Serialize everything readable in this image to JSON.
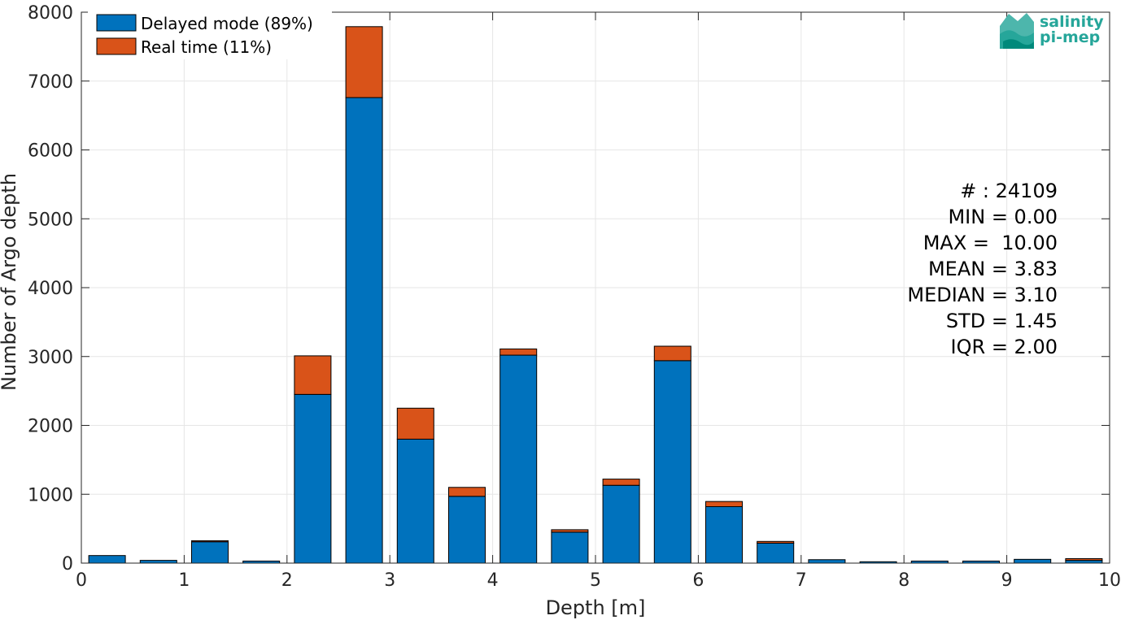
{
  "chart_data": {
    "type": "bar",
    "stacked": true,
    "xlabel": "Depth [m]",
    "ylabel": "Number of Argo depth",
    "xlim": [
      0,
      10
    ],
    "ylim": [
      0,
      8000
    ],
    "xticks": [
      "0",
      "1",
      "2",
      "3",
      "4",
      "5",
      "6",
      "7",
      "8",
      "9",
      "10"
    ],
    "yticks": [
      "0",
      "1000",
      "2000",
      "3000",
      "4000",
      "5000",
      "6000",
      "7000",
      "8000"
    ],
    "grid": true,
    "legend_position": "top-left",
    "bin_centers": [
      0.25,
      0.75,
      1.25,
      1.75,
      2.25,
      2.75,
      3.25,
      3.75,
      4.25,
      4.75,
      5.25,
      5.75,
      6.25,
      6.75,
      7.25,
      7.75,
      8.25,
      8.75,
      9.25,
      9.75
    ],
    "series": [
      {
        "name": "Delayed mode (89%)",
        "color": "#0072BD",
        "values": [
          110,
          40,
          310,
          30,
          2450,
          6760,
          1800,
          970,
          3020,
          450,
          1130,
          2940,
          820,
          290,
          50,
          20,
          30,
          30,
          55,
          40
        ]
      },
      {
        "name": "Real time (11%)",
        "color": "#D95319",
        "values": [
          0,
          0,
          15,
          0,
          560,
          1030,
          450,
          130,
          90,
          35,
          90,
          210,
          75,
          25,
          0,
          0,
          0,
          0,
          0,
          25
        ]
      }
    ]
  },
  "stats": {
    "count": "# : 24109",
    "min": "MIN = 0.00",
    "max": "MAX =  10.00",
    "mean": "MEAN = 3.83",
    "median": "MEDIAN = 3.10",
    "std": "STD = 1.45",
    "iqr": "IQR = 2.00"
  },
  "logo": {
    "line1": "salinity",
    "line2": "pi-mep",
    "color": "#26a69a"
  }
}
